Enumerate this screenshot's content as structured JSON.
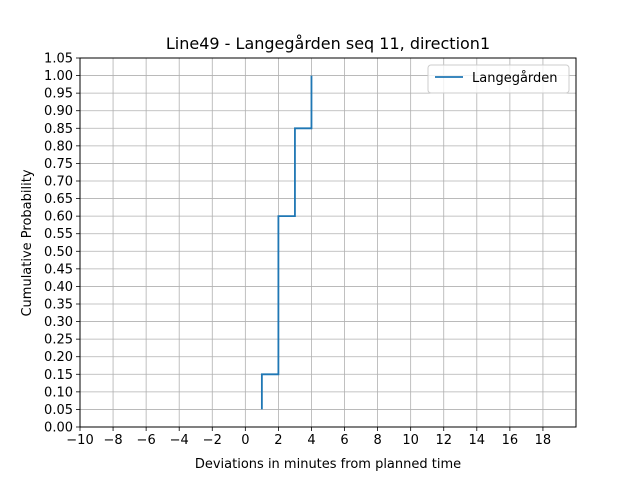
{
  "chart_data": {
    "type": "line",
    "title": "Line49 - Langegården seq 11, direction1",
    "xlabel": "Deviations in minutes from planned time",
    "ylabel": "Cumulative Probability",
    "xlim": [
      -10,
      20
    ],
    "ylim": [
      0,
      1.05
    ],
    "xticks": [
      -10,
      -8,
      -6,
      -4,
      -2,
      0,
      2,
      4,
      6,
      8,
      10,
      12,
      14,
      16,
      18
    ],
    "xtick_labels": [
      "−10",
      "−8",
      "−6",
      "−4",
      "−2",
      "0",
      "2",
      "4",
      "6",
      "8",
      "10",
      "12",
      "14",
      "16",
      "18"
    ],
    "yticks": [
      0.0,
      0.05,
      0.1,
      0.15,
      0.2,
      0.25,
      0.3,
      0.35,
      0.4,
      0.45,
      0.5,
      0.55,
      0.6,
      0.65,
      0.7,
      0.75,
      0.8,
      0.85,
      0.9,
      0.95,
      1.0,
      1.05
    ],
    "ytick_labels": [
      "0.00",
      "0.05",
      "0.10",
      "0.15",
      "0.20",
      "0.25",
      "0.30",
      "0.35",
      "0.40",
      "0.45",
      "0.50",
      "0.55",
      "0.60",
      "0.65",
      "0.70",
      "0.75",
      "0.80",
      "0.85",
      "0.90",
      "0.95",
      "1.00",
      "1.05"
    ],
    "grid": true,
    "legend_position": "top-right",
    "series": [
      {
        "name": "Langegården",
        "color": "#1f77b4",
        "step": true,
        "x": [
          1,
          1,
          2,
          2,
          3,
          3,
          4,
          4
        ],
        "y": [
          0.05,
          0.15,
          0.15,
          0.6,
          0.6,
          0.85,
          0.85,
          1.0
        ]
      }
    ]
  }
}
